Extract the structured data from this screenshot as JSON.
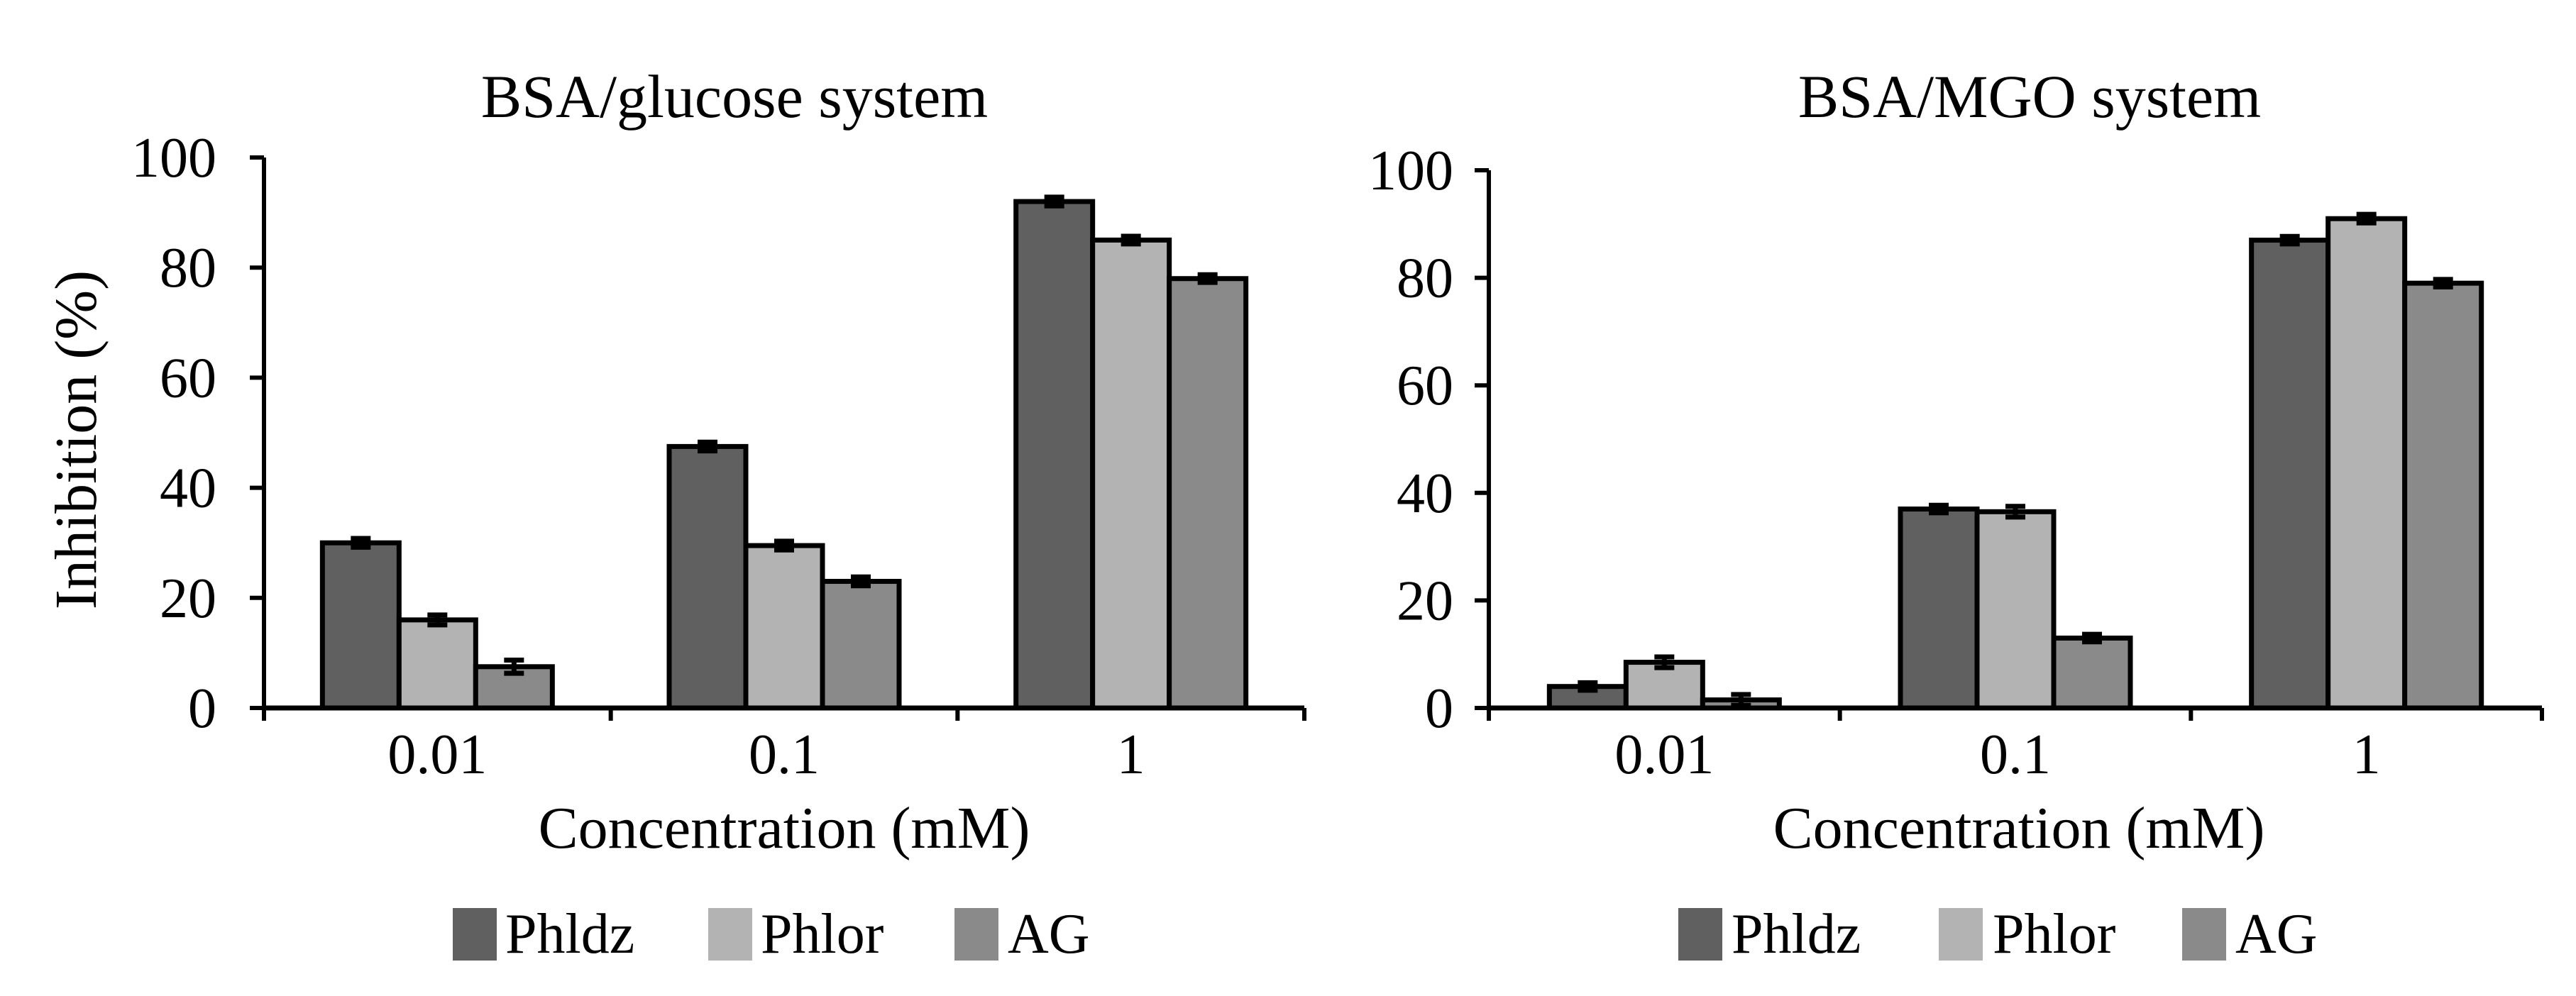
{
  "chart_data": [
    {
      "type": "bar",
      "title": "BSA/glucose system",
      "xlabel": "Concentration (mM)",
      "ylabel": "Inhibition (%)",
      "ylim": [
        0,
        100
      ],
      "yticks": [
        0,
        20,
        40,
        60,
        80,
        100
      ],
      "categories": [
        "0.01",
        "0.1",
        "1"
      ],
      "series": [
        {
          "name": "Phldz",
          "color": "#606060",
          "values": [
            30,
            47.5,
            92
          ],
          "errors": [
            0.8,
            0.8,
            0.8
          ]
        },
        {
          "name": "Phlor",
          "color": "#b3b3b3",
          "values": [
            16,
            29.5,
            85
          ],
          "errors": [
            0.9,
            0.8,
            0.7
          ]
        },
        {
          "name": "AG",
          "color": "#8a8a8a",
          "values": [
            7.5,
            23,
            78
          ],
          "errors": [
            1.2,
            0.8,
            0.7
          ]
        }
      ],
      "legend_position": "bottom"
    },
    {
      "type": "bar",
      "title": "BSA/MGO system",
      "xlabel": "Concentration (mM)",
      "ylabel": "",
      "ylim": [
        0,
        100
      ],
      "yticks": [
        0,
        20,
        40,
        60,
        80,
        100
      ],
      "categories": [
        "0.01",
        "0.1",
        "1"
      ],
      "series": [
        {
          "name": "Phldz",
          "color": "#606060",
          "values": [
            4,
            37,
            87
          ],
          "errors": [
            0.7,
            0.7,
            0.7
          ]
        },
        {
          "name": "Phlor",
          "color": "#b3b3b3",
          "values": [
            8.5,
            36.5,
            91
          ],
          "errors": [
            1.0,
            1.0,
            0.8
          ]
        },
        {
          "name": "AG",
          "color": "#8a8a8a",
          "values": [
            1.5,
            13,
            79
          ],
          "errors": [
            1.0,
            0.7,
            0.7
          ]
        }
      ],
      "legend_position": "bottom"
    }
  ]
}
